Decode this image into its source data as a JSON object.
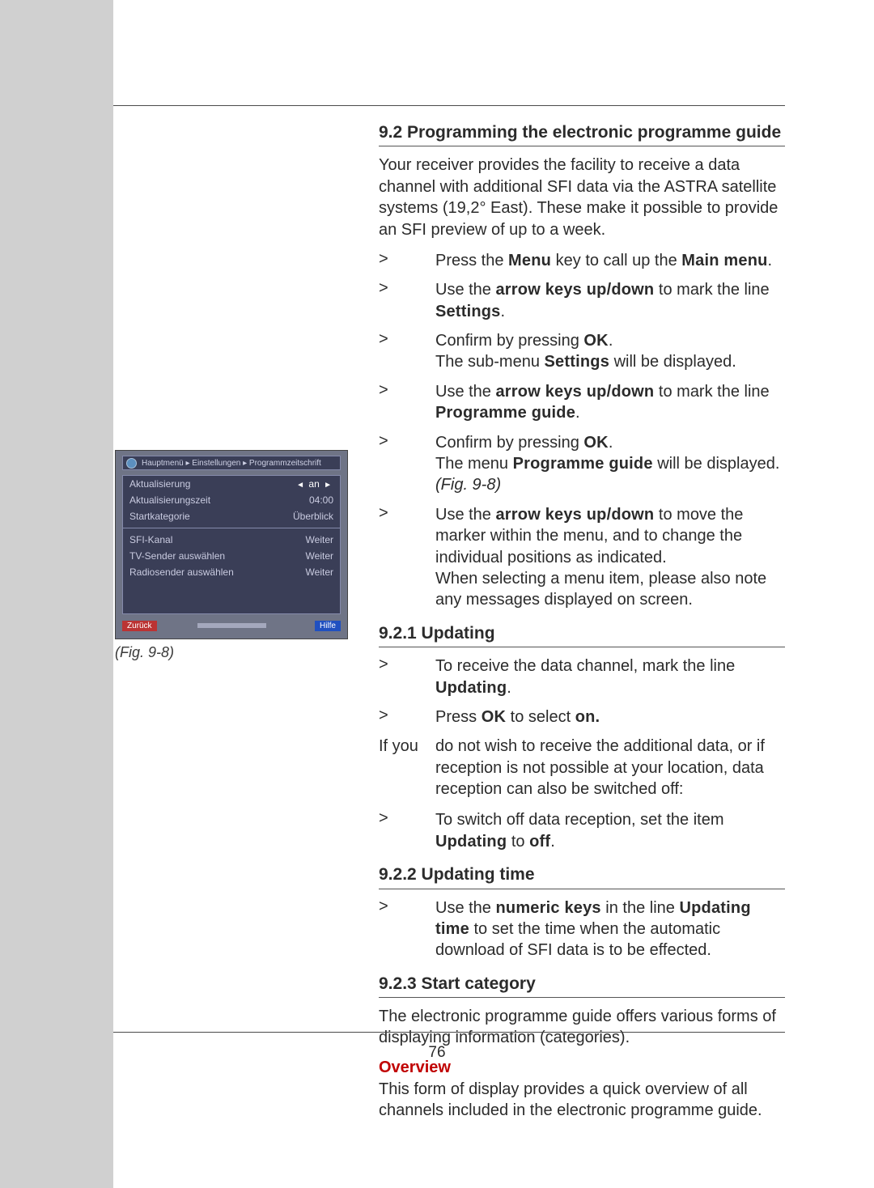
{
  "page_number": "76",
  "section": {
    "title_9_2": "9.2 Programming the electronic programme guide",
    "intro": "Your receiver provides the facility to receive a data channel with additional SFI data via the ASTRA satellite systems (19,2° East). These make it possible to provide an SFI preview of up to a week.",
    "steps_a": [
      {
        "gt": ">",
        "parts": [
          "Press the ",
          {
            "b": "Menu"
          },
          " key to call up the ",
          {
            "b": "Main menu"
          },
          "."
        ]
      },
      {
        "gt": ">",
        "parts": [
          "Use the ",
          {
            "b": "arrow keys up/down"
          },
          " to mark the line ",
          {
            "b": "Settings"
          },
          "."
        ]
      },
      {
        "gt": ">",
        "parts": [
          "Confirm by pressing ",
          {
            "b": "OK"
          },
          ".",
          {
            "br": true
          },
          "The sub-menu ",
          {
            "b": "Settings"
          },
          " will be displayed."
        ]
      },
      {
        "gt": ">",
        "parts": [
          "Use the ",
          {
            "b": "arrow keys up/down"
          },
          " to mark the line ",
          {
            "b": "Programme guide"
          },
          "."
        ]
      },
      {
        "gt": ">",
        "parts": [
          "Confirm by pressing ",
          {
            "b": "OK"
          },
          ".",
          {
            "br": true
          },
          "The menu ",
          {
            "b": "Programme guide"
          },
          " will be displayed. ",
          {
            "i": "(Fig. 9-8)"
          }
        ]
      },
      {
        "gt": ">",
        "parts": [
          "Use the ",
          {
            "b": "arrow keys up/down"
          },
          " to move the marker within the menu, and to change the individual positions as indicated.",
          {
            "br": true
          },
          "When selecting a menu item, please also note any messages displayed on screen."
        ]
      }
    ],
    "title_9_2_1": "9.2.1 Updating",
    "steps_b": [
      {
        "gt": ">",
        "parts": [
          "To receive the data channel, mark the line ",
          {
            "b": "Updating"
          },
          "."
        ]
      },
      {
        "gt": ">",
        "parts": [
          "Press ",
          {
            "b": "OK"
          },
          " to select ",
          {
            "b": "on."
          }
        ]
      }
    ],
    "noreceive_lead": "If you ",
    "noreceive_rest": "do not wish to receive the additional data, or if reception is not possible at your location, data reception can also be switched off:",
    "steps_c": [
      {
        "gt": ">",
        "parts": [
          "To switch off data reception, set the item ",
          {
            "b": "Updating"
          },
          " to ",
          {
            "b": "off"
          },
          "."
        ]
      }
    ],
    "title_9_2_2": "9.2.2 Updating time",
    "steps_d": [
      {
        "gt": ">",
        "parts": [
          "Use the ",
          {
            "b": "numeric keys"
          },
          " in the line ",
          {
            "b": "Updating time"
          },
          " to set the time when the automatic download of SFI data is to be effected."
        ]
      }
    ],
    "title_9_2_3": "9.2.3 Start category",
    "start_cat_para": "The electronic programme guide offers various forms of displaying information (categories).",
    "overview_head": "Overview",
    "overview_para": "This form of display provides a quick overview of all channels included in the electronic programme guide."
  },
  "figure": {
    "caption": "(Fig. 9-8)",
    "header": "Hauptmenü ▸ Einstellungen ▸ Programmzeitschrift",
    "rows_top": [
      {
        "label": "Aktualisierung",
        "val": "an",
        "sel": true
      },
      {
        "label": "Aktualisierungszeit",
        "val": "04:00"
      },
      {
        "label": "Startkategorie",
        "val": "Überblick"
      }
    ],
    "rows_bottom": [
      {
        "label": "SFI-Kanal",
        "val": "Weiter"
      },
      {
        "label": "TV-Sender auswählen",
        "val": "Weiter"
      },
      {
        "label": "Radiosender auswählen",
        "val": "Weiter"
      }
    ],
    "footer_left": "Zurück",
    "footer_right": "Hilfe"
  },
  "colors": {
    "left_margin": "#d0d0d0",
    "rule": "#4a4a4a",
    "text": "#2b2b2b",
    "overview_red": "#c00000",
    "shot_bg": "#6f7486",
    "shot_panel": "#3a3e57"
  }
}
